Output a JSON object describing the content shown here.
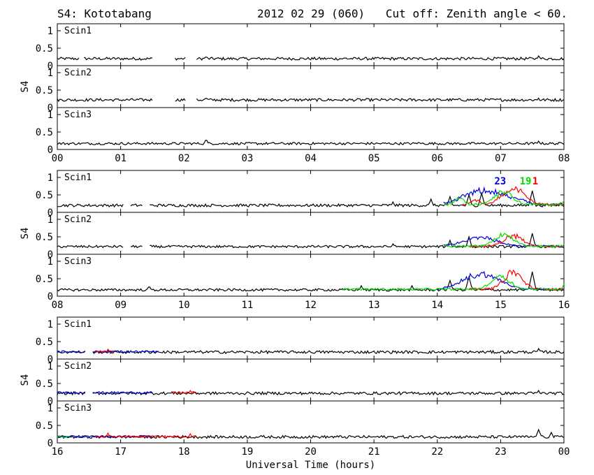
{
  "header": {
    "title": "S4: Kototabang",
    "date": "2012 02 29 (060)",
    "cutoff": "Cut off: Zenith angle < 60."
  },
  "chart_data": {
    "type": "line",
    "xlabel": "Universal Time (hours)",
    "ylabel": "S4",
    "ylim": [
      0,
      1.2
    ],
    "yticks": [
      "0",
      "0.5",
      "1"
    ],
    "colors": {
      "axis": "#000000",
      "series_default": "#000000",
      "red": "#ff0000",
      "green": "#00dd00",
      "blue": "#0000dd"
    },
    "sat_labels": [
      {
        "text": "23",
        "color": "#0000dd",
        "x": 14.9,
        "y": 0.9
      },
      {
        "text": "19",
        "color": "#00dd00",
        "x": 15.3,
        "y": 0.9
      },
      {
        "text": "1",
        "color": "#ff0000",
        "x": 15.5,
        "y": 0.9
      }
    ],
    "blocks": [
      {
        "xticks": [
          "00",
          "01",
          "02",
          "03",
          "04",
          "05",
          "06",
          "07",
          "08"
        ],
        "xrange": [
          0,
          8
        ],
        "panels": [
          {
            "label": "Scin1",
            "series": [
              {
                "color": "#000000",
                "base": 0.2,
                "noise": 0.04,
                "gaps": [
                  [
                    0.35,
                    0.42
                  ],
                  [
                    1.52,
                    1.85
                  ],
                  [
                    2.03,
                    2.2
                  ]
                ],
                "spikes": [
                  [
                    2.35,
                    0.28
                  ],
                  [
                    4.55,
                    0.25
                  ],
                  [
                    7.6,
                    0.28
                  ]
                ]
              }
            ]
          },
          {
            "label": "Scin2",
            "series": [
              {
                "color": "#000000",
                "base": 0.22,
                "noise": 0.04,
                "gaps": [
                  [
                    1.52,
                    1.85
                  ],
                  [
                    2.03,
                    2.2
                  ]
                ],
                "spikes": [
                  [
                    2.35,
                    0.3
                  ],
                  [
                    7.6,
                    0.27
                  ]
                ]
              }
            ]
          },
          {
            "label": "Scin3",
            "series": [
              {
                "color": "#000000",
                "base": 0.17,
                "noise": 0.035,
                "gaps": [],
                "spikes": [
                  [
                    2.35,
                    0.3
                  ],
                  [
                    5.7,
                    0.2
                  ],
                  [
                    7.6,
                    0.24
                  ]
                ]
              }
            ]
          }
        ]
      },
      {
        "xticks": [
          "08",
          "09",
          "10",
          "11",
          "12",
          "13",
          "14",
          "15",
          "16"
        ],
        "xrange": [
          8,
          16
        ],
        "panels": [
          {
            "label": "Scin1",
            "series": [
              {
                "color": "#000000",
                "base": 0.2,
                "noise": 0.04,
                "gaps": [
                  [
                    9.05,
                    9.15
                  ],
                  [
                    9.35,
                    9.45
                  ]
                ],
                "spikes": [
                  [
                    13.3,
                    0.3
                  ],
                  [
                    13.9,
                    0.38
                  ],
                  [
                    14.2,
                    0.45
                  ],
                  [
                    14.5,
                    0.5
                  ],
                  [
                    14.7,
                    0.55
                  ],
                  [
                    15.5,
                    0.62
                  ],
                  [
                    15.95,
                    0.3
                  ]
                ]
              },
              {
                "color": "#0000dd",
                "base": 0.22,
                "noise": 0.03,
                "range": [
                  14.1,
                  16.0
                ],
                "bumps": [
                  [
                    14.75,
                    0.65,
                    0.45
                  ],
                  [
                    15.3,
                    0.3,
                    0.15
                  ]
                ],
                "gaps": [],
                "spikes": []
              },
              {
                "color": "#ff0000",
                "base": 0.22,
                "noise": 0.03,
                "range": [
                  14.4,
                  16.0
                ],
                "bumps": [
                  [
                    15.2,
                    0.7,
                    0.25
                  ],
                  [
                    14.6,
                    0.35,
                    0.1
                  ]
                ],
                "gaps": [],
                "spikes": []
              },
              {
                "color": "#00dd00",
                "base": 0.22,
                "noise": 0.03,
                "range": [
                  14.1,
                  16.0
                ],
                "bumps": [
                  [
                    15.05,
                    0.6,
                    0.2
                  ],
                  [
                    14.35,
                    0.4,
                    0.1
                  ]
                ],
                "gaps": [],
                "spikes": [
                  [
                    16.0,
                    0.35
                  ]
                ]
              }
            ]
          },
          {
            "label": "Scin2",
            "series": [
              {
                "color": "#000000",
                "base": 0.22,
                "noise": 0.035,
                "gaps": [
                  [
                    9.05,
                    9.15
                  ],
                  [
                    9.35,
                    9.45
                  ]
                ],
                "spikes": [
                  [
                    13.3,
                    0.3
                  ],
                  [
                    14.2,
                    0.4
                  ],
                  [
                    14.5,
                    0.5
                  ],
                  [
                    15.5,
                    0.6
                  ]
                ]
              },
              {
                "color": "#0000dd",
                "base": 0.23,
                "noise": 0.03,
                "range": [
                  14.1,
                  16.0
                ],
                "bumps": [
                  [
                    14.7,
                    0.5,
                    0.35
                  ]
                ],
                "gaps": [],
                "spikes": []
              },
              {
                "color": "#ff0000",
                "base": 0.23,
                "noise": 0.03,
                "range": [
                  14.5,
                  16.0
                ],
                "bumps": [
                  [
                    15.2,
                    0.55,
                    0.2
                  ]
                ],
                "gaps": [],
                "spikes": []
              },
              {
                "color": "#00dd00",
                "base": 0.23,
                "noise": 0.03,
                "range": [
                  14.1,
                  16.0
                ],
                "bumps": [
                  [
                    15.05,
                    0.6,
                    0.2
                  ]
                ],
                "gaps": [],
                "spikes": [
                  [
                    16.0,
                    0.3
                  ]
                ]
              }
            ]
          },
          {
            "label": "Scin3",
            "series": [
              {
                "color": "#000000",
                "base": 0.18,
                "noise": 0.035,
                "gaps": [],
                "spikes": [
                  [
                    9.45,
                    0.3
                  ],
                  [
                    12.8,
                    0.3
                  ],
                  [
                    13.6,
                    0.3
                  ],
                  [
                    14.2,
                    0.45
                  ],
                  [
                    14.5,
                    0.55
                  ],
                  [
                    15.5,
                    0.7
                  ]
                ]
              },
              {
                "color": "#0000dd",
                "base": 0.2,
                "noise": 0.03,
                "range": [
                  14.0,
                  16.0
                ],
                "bumps": [
                  [
                    14.7,
                    0.65,
                    0.4
                  ]
                ],
                "gaps": [],
                "spikes": []
              },
              {
                "color": "#ff0000",
                "base": 0.2,
                "noise": 0.03,
                "range": [
                  14.5,
                  16.0
                ],
                "bumps": [
                  [
                    15.2,
                    0.7,
                    0.2
                  ]
                ],
                "gaps": [],
                "spikes": []
              },
              {
                "color": "#00dd00",
                "base": 0.2,
                "noise": 0.03,
                "range": [
                  12.5,
                  16.0
                ],
                "bumps": [
                  [
                    15.0,
                    0.6,
                    0.2
                  ]
                ],
                "gaps": [],
                "spikes": [
                  [
                    16.0,
                    0.35
                  ]
                ]
              }
            ]
          }
        ]
      },
      {
        "xticks": [
          "16",
          "17",
          "18",
          "19",
          "20",
          "21",
          "22",
          "23",
          "00"
        ],
        "xrange": [
          16,
          24
        ],
        "panels": [
          {
            "label": "Scin1",
            "series": [
              {
                "color": "#000000",
                "base": 0.2,
                "noise": 0.04,
                "gaps": [
                  [
                    16.45,
                    16.55
                  ]
                ],
                "spikes": [
                  [
                    23.6,
                    0.3
                  ]
                ]
              },
              {
                "color": "#0000dd",
                "base": 0.21,
                "noise": 0.03,
                "range": [
                  16.0,
                  17.6
                ],
                "gaps": [
                  [
                    16.45,
                    16.55
                  ]
                ],
                "spikes": []
              },
              {
                "color": "#ff0000",
                "base": 0.21,
                "noise": 0.03,
                "range": [
                  16.6,
                  16.9
                ],
                "gaps": [],
                "spikes": [
                  [
                    16.8,
                    0.28
                  ]
                ]
              }
            ]
          },
          {
            "label": "Scin2",
            "series": [
              {
                "color": "#000000",
                "base": 0.22,
                "noise": 0.04,
                "gaps": [
                  [
                    16.45,
                    16.55
                  ]
                ],
                "spikes": [
                  [
                    23.6,
                    0.3
                  ]
                ]
              },
              {
                "color": "#0000dd",
                "base": 0.24,
                "noise": 0.03,
                "range": [
                  16.0,
                  17.5
                ],
                "gaps": [
                  [
                    16.45,
                    16.55
                  ]
                ],
                "spikes": []
              },
              {
                "color": "#ff0000",
                "base": 0.24,
                "noise": 0.03,
                "range": [
                  17.8,
                  18.2
                ],
                "gaps": [],
                "spikes": [
                  [
                    18.1,
                    0.3
                  ]
                ]
              }
            ]
          },
          {
            "label": "Scin3",
            "series": [
              {
                "color": "#000000",
                "base": 0.17,
                "noise": 0.04,
                "gaps": [],
                "spikes": [
                  [
                    23.6,
                    0.38
                  ],
                  [
                    23.8,
                    0.3
                  ]
                ]
              },
              {
                "color": "#0000dd",
                "base": 0.18,
                "noise": 0.03,
                "range": [
                  16.0,
                  17.5
                ],
                "gaps": [],
                "spikes": []
              },
              {
                "color": "#ff0000",
                "base": 0.18,
                "noise": 0.03,
                "range": [
                  16.6,
                  18.2
                ],
                "gaps": [],
                "spikes": [
                  [
                    16.8,
                    0.28
                  ],
                  [
                    18.1,
                    0.26
                  ]
                ]
              },
              {
                "color": "#00dd00",
                "base": 0.18,
                "noise": 0.03,
                "range": [
                  16.0,
                  16.2
                ],
                "gaps": [],
                "spikes": []
              }
            ]
          }
        ]
      }
    ]
  }
}
